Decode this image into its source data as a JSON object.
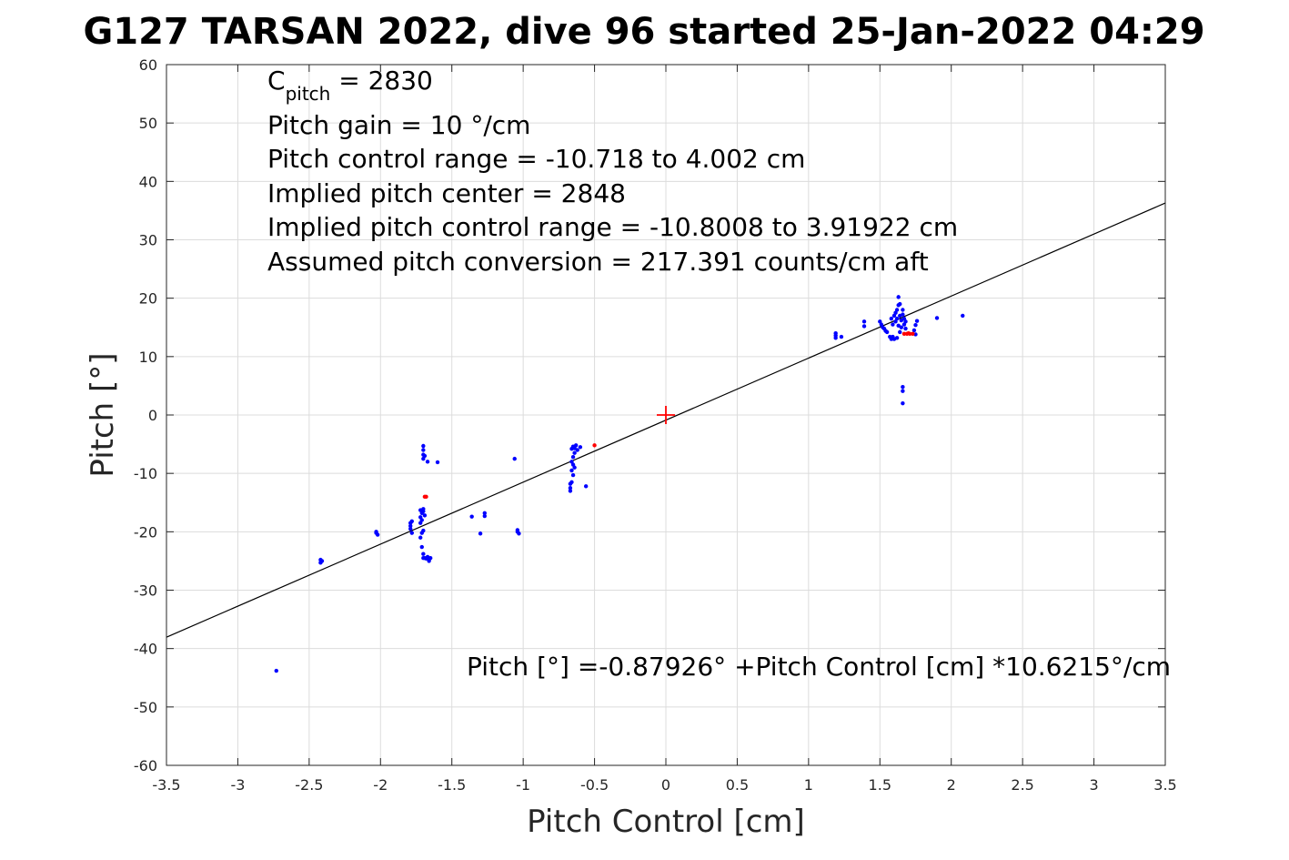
{
  "chart_data": {
    "type": "scatter",
    "title": "G127 TARSAN 2022, dive 96 started 25-Jan-2022 04:29",
    "xlabel": "Pitch Control [cm]",
    "ylabel": "Pitch [°]",
    "xlim": [
      -3.5,
      3.5
    ],
    "ylim": [
      -60,
      60
    ],
    "xticks": [
      -3.5,
      -3,
      -2.5,
      -2,
      -1.5,
      -1,
      -0.5,
      0,
      0.5,
      1,
      1.5,
      2,
      2.5,
      3,
      3.5
    ],
    "xtick_labels": [
      "-3.5",
      "-3",
      "-2.5",
      "-2",
      "-1.5",
      "-1",
      "-0.5",
      "0",
      "0.5",
      "1",
      "1.5",
      "2",
      "2.5",
      "3",
      "3.5"
    ],
    "yticks": [
      -60,
      -50,
      -40,
      -30,
      -20,
      -10,
      0,
      10,
      20,
      30,
      40,
      50,
      60
    ],
    "ytick_labels": [
      "-60",
      "-50",
      "-40",
      "-30",
      "-20",
      "-10",
      "0",
      "10",
      "20",
      "30",
      "40",
      "50",
      "60"
    ],
    "grid": true,
    "annotations": {
      "c_pitch_main": "C",
      "c_pitch_sub": "pitch",
      "c_pitch_value": " = 2830",
      "line2": "Pitch gain = 10 °/cm",
      "line3": "Pitch control range = -10.718 to 4.002 cm",
      "line4": "Implied pitch center = 2848",
      "line5": "Implied pitch control range = -10.8008 to 3.91922 cm",
      "line6": "Assumed pitch conversion = 217.391 counts/cm aft",
      "fit_equation": "Pitch [°] =-0.87926° +Pitch Control [cm] *10.6215°/cm"
    },
    "fit_line": {
      "intercept": -0.87926,
      "slope": 10.6215,
      "color": "#000000"
    },
    "center_marker": {
      "x": 0,
      "y": 0,
      "color": "#ff0000"
    },
    "series": [
      {
        "color": "#0000ff",
        "points": [
          [
            -2.73,
            -43.8
          ],
          [
            -2.42,
            -24.8
          ],
          [
            -2.42,
            -25.3
          ],
          [
            -2.41,
            -25.0
          ],
          [
            -2.03,
            -20.0
          ],
          [
            -2.02,
            -20.5
          ],
          [
            -2.03,
            -20.2
          ],
          [
            -1.79,
            -18.5
          ],
          [
            -1.79,
            -19.5
          ],
          [
            -1.78,
            -20.2
          ],
          [
            -1.79,
            -19.0
          ],
          [
            -1.78,
            -18.2
          ],
          [
            -1.72,
            -16.3
          ],
          [
            -1.71,
            -16.8
          ],
          [
            -1.72,
            -17.5
          ],
          [
            -1.7,
            -16.1
          ],
          [
            -1.71,
            -18.0
          ],
          [
            -1.69,
            -17.2
          ],
          [
            -1.7,
            -16.5
          ],
          [
            -1.72,
            -18.5
          ],
          [
            -1.71,
            -20.2
          ],
          [
            -1.72,
            -21.0
          ],
          [
            -1.7,
            -19.8
          ],
          [
            -1.71,
            -22.6
          ],
          [
            -1.7,
            -23.8
          ],
          [
            -1.7,
            -24.5
          ],
          [
            -1.69,
            -24.5
          ],
          [
            -1.68,
            -24.6
          ],
          [
            -1.67,
            -24.4
          ],
          [
            -1.66,
            -24.8
          ],
          [
            -1.65,
            -24.5
          ],
          [
            -1.66,
            -25.0
          ],
          [
            -1.67,
            -24.3
          ],
          [
            -1.7,
            -5.3
          ],
          [
            -1.7,
            -6.0
          ],
          [
            -1.7,
            -6.8
          ],
          [
            -1.7,
            -7.5
          ],
          [
            -1.69,
            -7.0
          ],
          [
            -1.67,
            -8.0
          ],
          [
            -1.6,
            -8.1
          ],
          [
            -1.36,
            -17.4
          ],
          [
            -1.3,
            -20.3
          ],
          [
            -1.27,
            -16.8
          ],
          [
            -1.27,
            -17.3
          ],
          [
            -1.06,
            -7.5
          ],
          [
            -1.04,
            -19.7
          ],
          [
            -1.03,
            -20.3
          ],
          [
            -1.04,
            -20.0
          ],
          [
            -0.67,
            -12.5
          ],
          [
            -0.67,
            -13.0
          ],
          [
            -0.67,
            -11.8
          ],
          [
            -0.66,
            -11.5
          ],
          [
            -0.65,
            -10.3
          ],
          [
            -0.66,
            -9.5
          ],
          [
            -0.65,
            -8.5
          ],
          [
            -0.64,
            -9.0
          ],
          [
            -0.66,
            -8.0
          ],
          [
            -0.65,
            -7.2
          ],
          [
            -0.64,
            -6.5
          ],
          [
            -0.64,
            -5.7
          ],
          [
            -0.65,
            -5.4
          ],
          [
            -0.63,
            -5.2
          ],
          [
            -0.62,
            -6.0
          ],
          [
            -0.66,
            -5.8
          ],
          [
            -0.6,
            -5.5
          ],
          [
            -0.56,
            -12.2
          ],
          [
            1.19,
            13.6
          ],
          [
            1.19,
            14.0
          ],
          [
            1.19,
            13.2
          ],
          [
            1.23,
            13.4
          ],
          [
            1.39,
            15.2
          ],
          [
            1.39,
            16.0
          ],
          [
            1.5,
            16.0
          ],
          [
            1.51,
            15.5
          ],
          [
            1.52,
            15.0
          ],
          [
            1.53,
            14.8
          ],
          [
            1.54,
            14.4
          ],
          [
            1.55,
            14.2
          ],
          [
            1.57,
            13.4
          ],
          [
            1.58,
            13.0
          ],
          [
            1.59,
            13.4
          ],
          [
            1.6,
            13.0
          ],
          [
            1.62,
            13.2
          ],
          [
            1.58,
            16.5
          ],
          [
            1.59,
            15.5
          ],
          [
            1.6,
            17.0
          ],
          [
            1.61,
            16.0
          ],
          [
            1.61,
            17.5
          ],
          [
            1.62,
            18.0
          ],
          [
            1.62,
            16.5
          ],
          [
            1.63,
            18.8
          ],
          [
            1.63,
            20.2
          ],
          [
            1.64,
            19.0
          ],
          [
            1.64,
            17.0
          ],
          [
            1.65,
            16.2
          ],
          [
            1.65,
            15.0
          ],
          [
            1.66,
            18.0
          ],
          [
            1.66,
            17.2
          ],
          [
            1.67,
            16.5
          ],
          [
            1.67,
            15.5
          ],
          [
            1.68,
            14.8
          ],
          [
            1.68,
            16.0
          ],
          [
            1.64,
            14.2
          ],
          [
            1.63,
            15.3
          ],
          [
            1.66,
            4.8
          ],
          [
            1.66,
            4.1
          ],
          [
            1.66,
            2.0
          ],
          [
            1.74,
            14.5
          ],
          [
            1.75,
            15.4
          ],
          [
            1.75,
            13.8
          ],
          [
            1.76,
            16.1
          ],
          [
            1.9,
            16.6
          ],
          [
            2.08,
            17.0
          ]
        ]
      },
      {
        "color": "#ff0000",
        "points": [
          [
            -1.69,
            -14.0
          ],
          [
            -1.68,
            -14.0
          ],
          [
            -0.5,
            -5.2
          ],
          [
            1.67,
            13.9
          ],
          [
            1.69,
            13.9
          ],
          [
            1.71,
            13.9
          ],
          [
            1.73,
            13.9
          ],
          [
            1.7,
            14.0
          ]
        ]
      }
    ]
  }
}
